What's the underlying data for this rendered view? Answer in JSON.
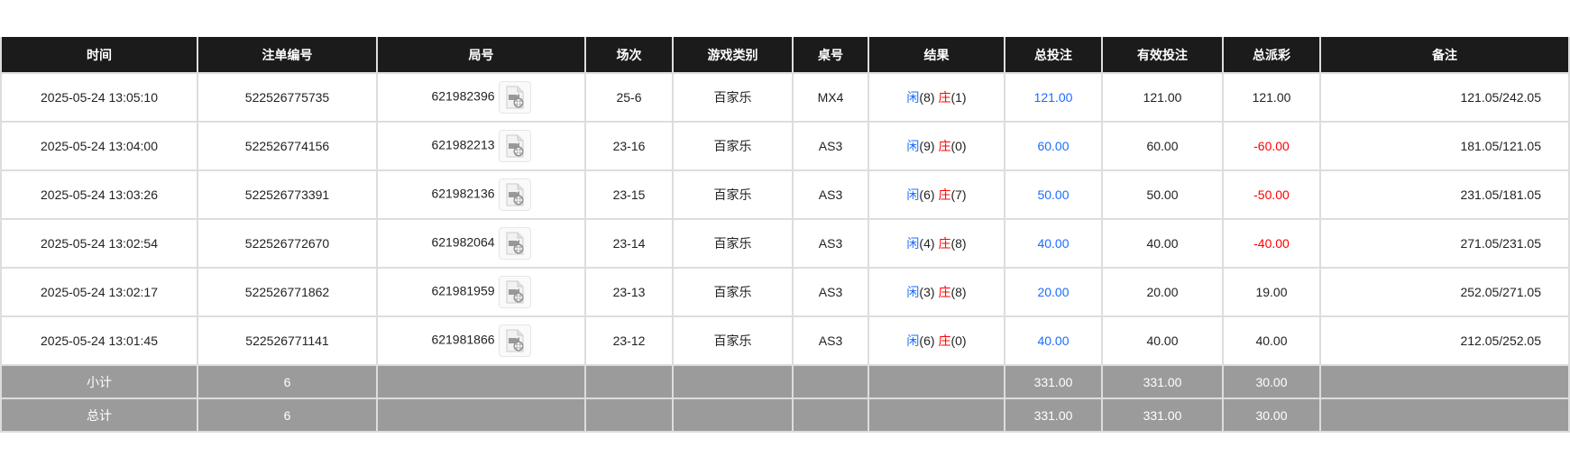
{
  "headers": [
    "时间",
    "注单编号",
    "局号",
    "场次",
    "游戏类别",
    "桌号",
    "结果",
    "总投注",
    "有效投注",
    "总派彩",
    "备注"
  ],
  "rows": [
    {
      "time": "2025-05-24 13:05:10",
      "bet_id": "522526775735",
      "round": "621982396",
      "session": "25-6",
      "game": "百家乐",
      "table": "MX4",
      "player_label": "闲",
      "player": "(8)",
      "banker_label": "庄",
      "banker": "(1)",
      "total_bet": "121.00",
      "valid_bet": "121.00",
      "payout": "121.00",
      "payout_negative": false,
      "note": "121.05/242.05"
    },
    {
      "time": "2025-05-24 13:04:00",
      "bet_id": "522526774156",
      "round": "621982213",
      "session": "23-16",
      "game": "百家乐",
      "table": "AS3",
      "player_label": "闲",
      "player": "(9)",
      "banker_label": "庄",
      "banker": "(0)",
      "total_bet": "60.00",
      "valid_bet": "60.00",
      "payout": "-60.00",
      "payout_negative": true,
      "note": "181.05/121.05"
    },
    {
      "time": "2025-05-24 13:03:26",
      "bet_id": "522526773391",
      "round": "621982136",
      "session": "23-15",
      "game": "百家乐",
      "table": "AS3",
      "player_label": "闲",
      "player": "(6)",
      "banker_label": "庄",
      "banker": "(7)",
      "total_bet": "50.00",
      "valid_bet": "50.00",
      "payout": "-50.00",
      "payout_negative": true,
      "note": "231.05/181.05"
    },
    {
      "time": "2025-05-24 13:02:54",
      "bet_id": "522526772670",
      "round": "621982064",
      "session": "23-14",
      "game": "百家乐",
      "table": "AS3",
      "player_label": "闲",
      "player": "(4)",
      "banker_label": "庄",
      "banker": "(8)",
      "total_bet": "40.00",
      "valid_bet": "40.00",
      "payout": "-40.00",
      "payout_negative": true,
      "note": "271.05/231.05"
    },
    {
      "time": "2025-05-24 13:02:17",
      "bet_id": "522526771862",
      "round": "621981959",
      "session": "23-13",
      "game": "百家乐",
      "table": "AS3",
      "player_label": "闲",
      "player": "(3)",
      "banker_label": "庄",
      "banker": "(8)",
      "total_bet": "20.00",
      "valid_bet": "20.00",
      "payout": "19.00",
      "payout_negative": false,
      "note": "252.05/271.05"
    },
    {
      "time": "2025-05-24 13:01:45",
      "bet_id": "522526771141",
      "round": "621981866",
      "session": "23-12",
      "game": "百家乐",
      "table": "AS3",
      "player_label": "闲",
      "player": "(6)",
      "banker_label": "庄",
      "banker": "(0)",
      "total_bet": "40.00",
      "valid_bet": "40.00",
      "payout": "40.00",
      "payout_negative": false,
      "note": "212.05/252.05"
    }
  ],
  "subtotal": {
    "label": "小计",
    "count": "6",
    "total_bet": "331.00",
    "valid_bet": "331.00",
    "payout": "30.00"
  },
  "total": {
    "label": "总计",
    "count": "6",
    "total_bet": "331.00",
    "valid_bet": "331.00",
    "payout": "30.00"
  },
  "colors": {
    "header_bg": "#1b1b1b",
    "summary_bg": "#9b9b9b",
    "blue": "#1a6dff",
    "red": "#ff0000"
  },
  "icons": {
    "round_detail": "video-file-icon"
  }
}
